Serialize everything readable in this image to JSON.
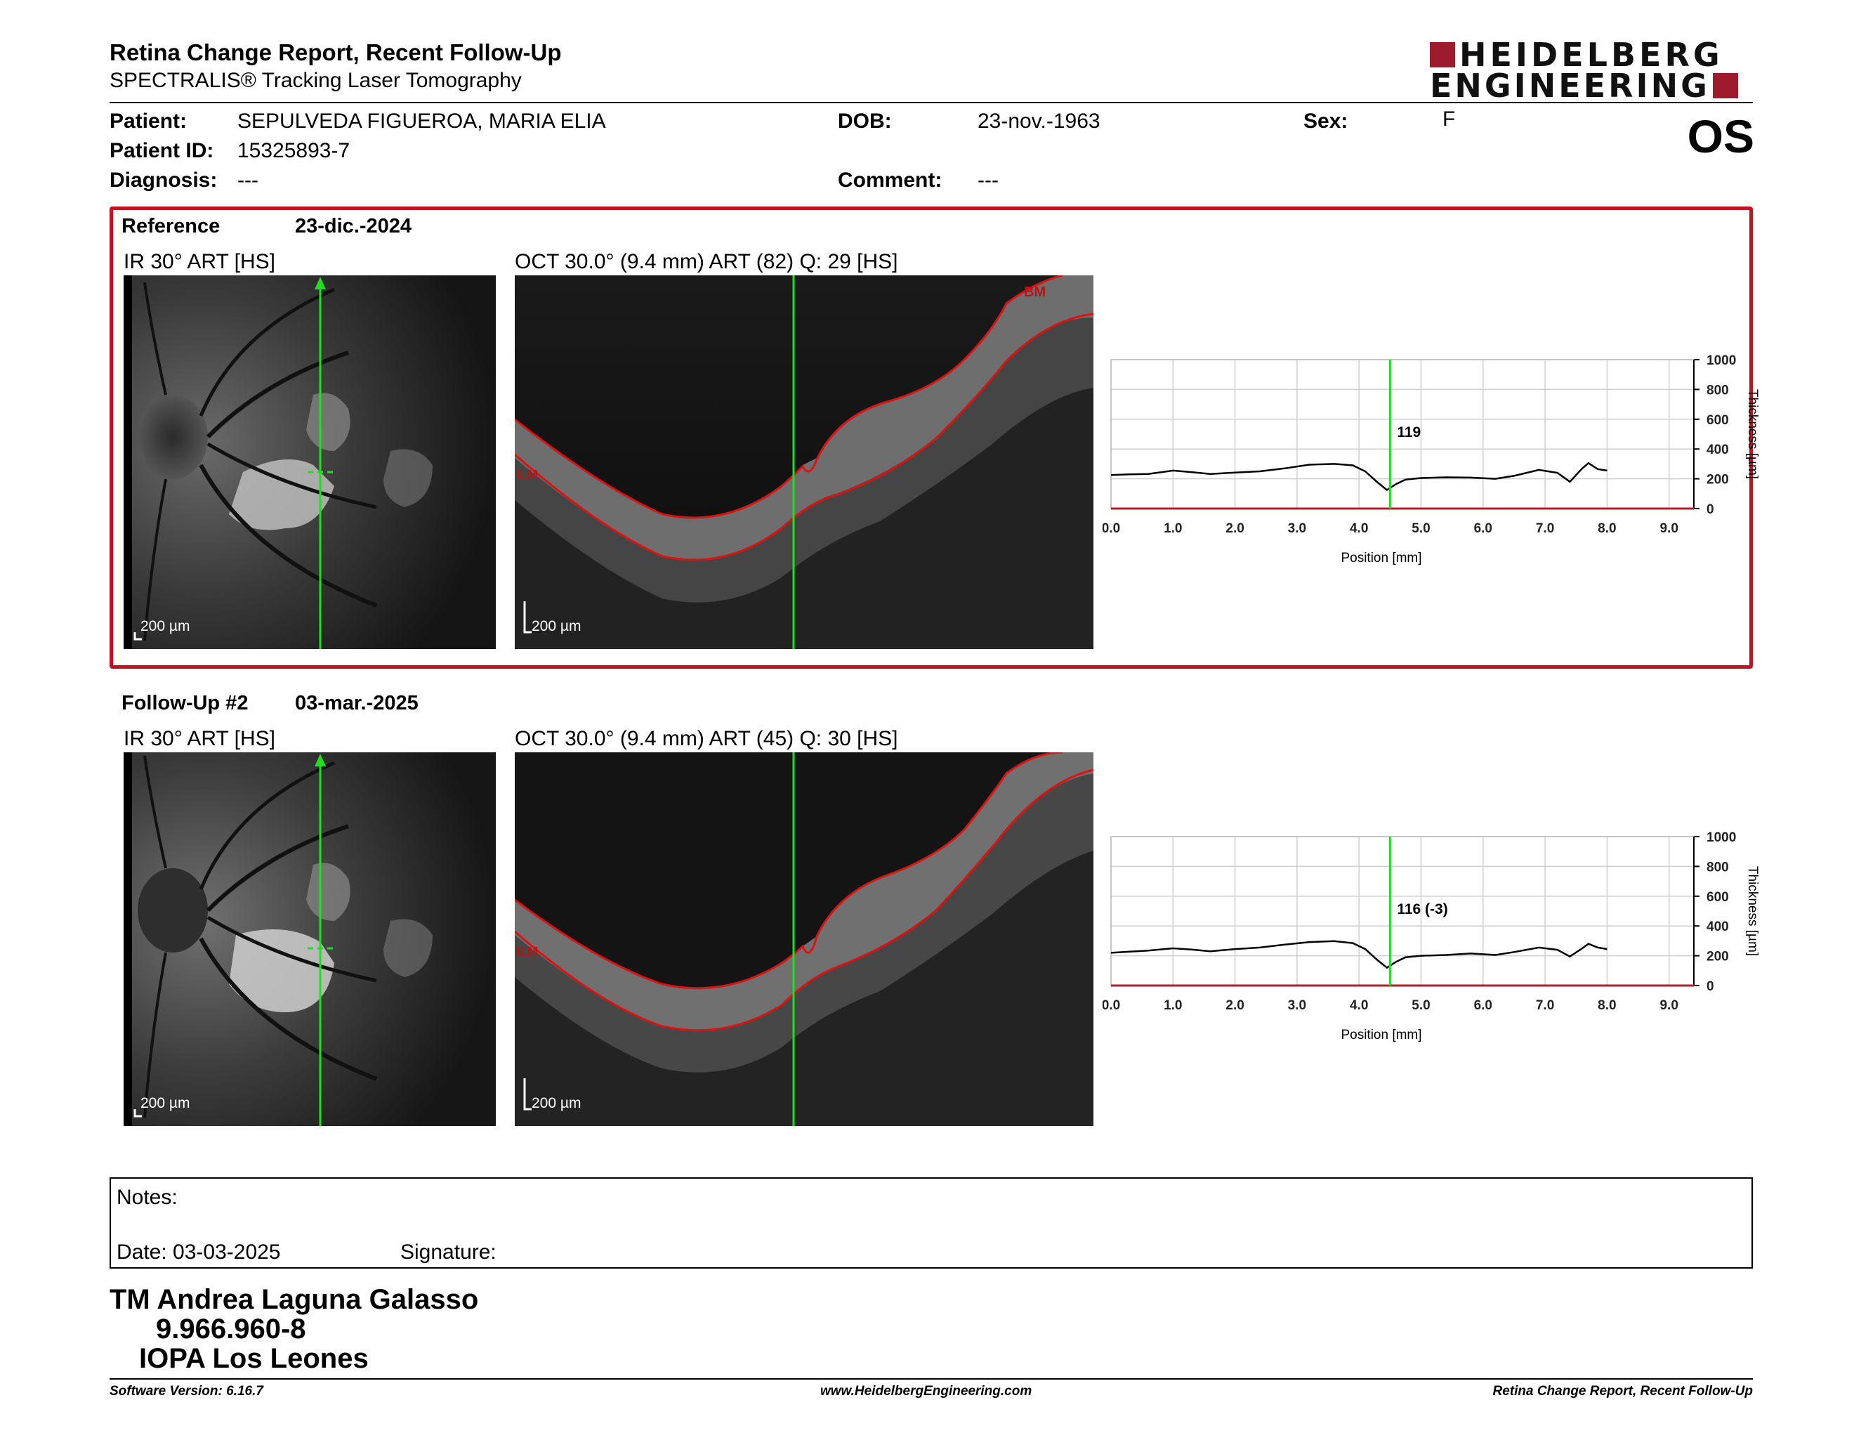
{
  "header": {
    "title": "Retina Change Report, Recent Follow-Up",
    "subtitle": "SPECTRALIS® Tracking Laser Tomography",
    "logo_line1": "HEIDELBERG",
    "logo_line2": "ENGINEERING",
    "eye": "OS"
  },
  "patient": {
    "patient_label": "Patient:",
    "patient_name": "SEPULVEDA FIGUEROA, MARIA ELIA",
    "id_label": "Patient ID:",
    "id_value": "15325893-7",
    "diagnosis_label": "Diagnosis:",
    "diagnosis_value": "---",
    "dob_label": "DOB:",
    "dob_value": "23-nov.-1963",
    "comment_label": "Comment:",
    "comment_value": "---",
    "sex_label": "Sex:",
    "sex_value": "F"
  },
  "reference": {
    "label": "Reference",
    "date": "23-dic.-2024",
    "ir_caption": "IR 30° ART [HS]",
    "oct_caption": "OCT 30.0° (9.4 mm) ART (82) Q: 29 [HS]",
    "scale_ir": "200 µm",
    "scale_oct": "200 µm",
    "bm_label": "BM",
    "ilm_label": "ILM",
    "cursor_value": "119"
  },
  "followup": {
    "label": "Follow-Up #2",
    "date": "03-mar.-2025",
    "ir_caption": "IR 30° ART [HS]",
    "oct_caption": "OCT 30.0° (9.4 mm) ART (45) Q: 30 [HS]",
    "scale_ir": "200 µm",
    "scale_oct": "200 µm",
    "ilm_label": "ILM",
    "cursor_value": "116 (-3)"
  },
  "chart_data": [
    {
      "type": "line",
      "xlabel": "Position [mm]",
      "ylabel": "Thickness [µm]",
      "xlim": [
        0,
        9.4
      ],
      "ylim": [
        0,
        1000
      ],
      "x_ticks": [
        "0.0",
        "1.0",
        "2.0",
        "3.0",
        "4.0",
        "5.0",
        "6.0",
        "7.0",
        "8.0",
        "9.0"
      ],
      "y_ticks": [
        "0",
        "200",
        "400",
        "600",
        "800",
        "1000"
      ],
      "cursor_x": 4.5,
      "series": [
        {
          "x": [
            0,
            0.3,
            0.6,
            1.0,
            1.3,
            1.6,
            2.0,
            2.4,
            2.8,
            3.2,
            3.6,
            3.9,
            4.1,
            4.3,
            4.45,
            4.6,
            4.75,
            5.0,
            5.4,
            5.8,
            6.2,
            6.5,
            6.9,
            7.2,
            7.4,
            7.6,
            7.7,
            7.85,
            8.0
          ],
          "y": [
            225,
            230,
            232,
            255,
            245,
            232,
            242,
            250,
            270,
            295,
            300,
            290,
            250,
            175,
            125,
            165,
            195,
            205,
            210,
            208,
            200,
            220,
            260,
            240,
            180,
            270,
            305,
            265,
            255
          ]
        }
      ]
    },
    {
      "type": "line",
      "xlabel": "Position [mm]",
      "ylabel": "Thickness [µm]",
      "xlim": [
        0,
        9.4
      ],
      "ylim": [
        0,
        1000
      ],
      "x_ticks": [
        "0.0",
        "1.0",
        "2.0",
        "3.0",
        "4.0",
        "5.0",
        "6.0",
        "7.0",
        "8.0",
        "9.0"
      ],
      "y_ticks": [
        "0",
        "200",
        "400",
        "600",
        "800",
        "1000"
      ],
      "cursor_x": 4.5,
      "series": [
        {
          "x": [
            0,
            0.3,
            0.6,
            1.0,
            1.3,
            1.6,
            2.0,
            2.4,
            2.8,
            3.2,
            3.6,
            3.9,
            4.1,
            4.3,
            4.45,
            4.6,
            4.75,
            5.0,
            5.4,
            5.8,
            6.2,
            6.5,
            6.9,
            7.2,
            7.4,
            7.6,
            7.7,
            7.85,
            8.0
          ],
          "y": [
            220,
            228,
            235,
            250,
            242,
            230,
            245,
            255,
            275,
            292,
            298,
            285,
            245,
            170,
            120,
            160,
            190,
            200,
            205,
            215,
            205,
            225,
            255,
            240,
            195,
            250,
            280,
            255,
            245
          ]
        }
      ]
    }
  ],
  "notes": {
    "notes_label": "Notes:",
    "date_label": "Date: 03-03-2025",
    "signature_label": "Signature:"
  },
  "signature": {
    "name": "TM Andrea Laguna Galasso",
    "rut": "9.966.960-8",
    "clinic": "IOPA Los Leones"
  },
  "footer": {
    "software": "Software Version: 6.16.7",
    "website": "www.HeidelbergEngineering.com",
    "report": "Retina Change Report, Recent Follow-Up"
  }
}
